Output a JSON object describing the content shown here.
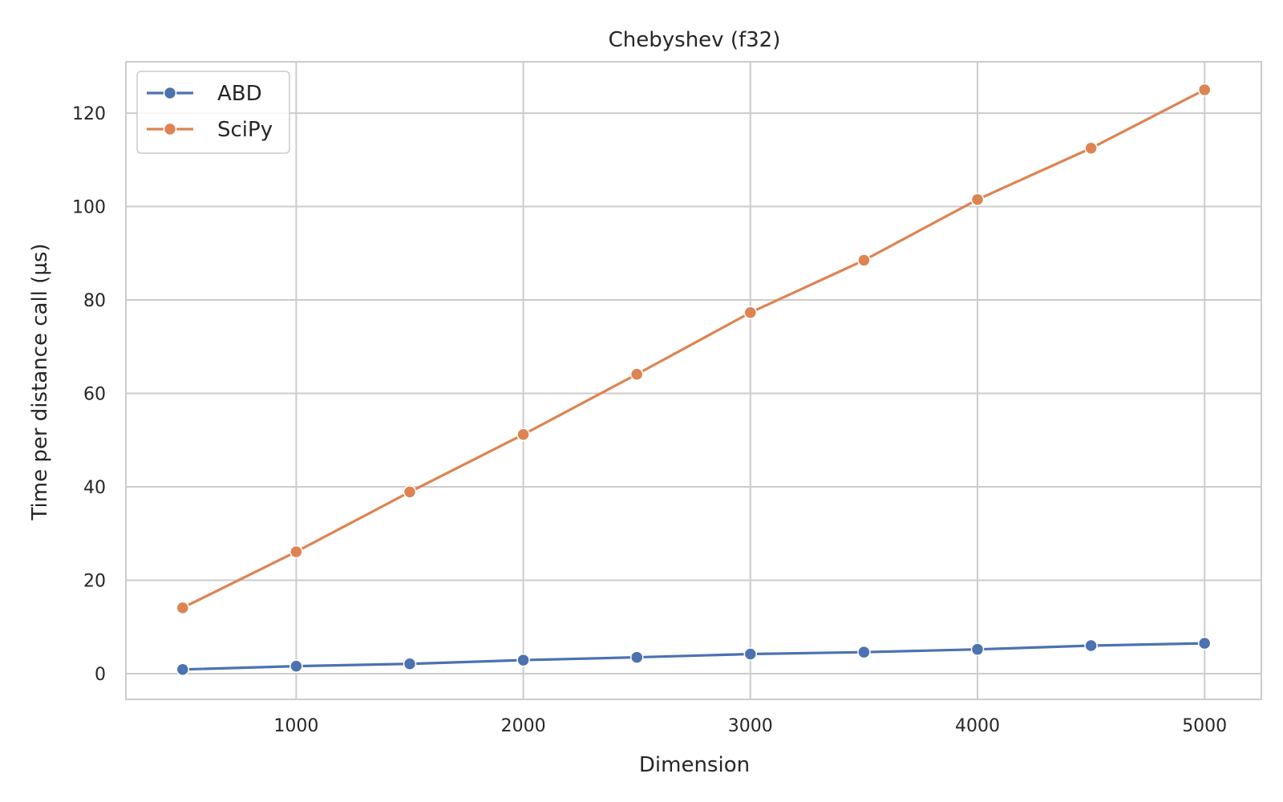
{
  "chart_data": {
    "type": "line",
    "title": "Chebyshev (f32)",
    "xlabel": "Dimension",
    "ylabel": "Time per distance call (µs)",
    "x": [
      500,
      1000,
      1500,
      2000,
      2500,
      3000,
      3500,
      4000,
      4500,
      5000
    ],
    "xlim": [
      250,
      5250
    ],
    "ylim": [
      -5.5,
      131
    ],
    "xticks": [
      1000,
      2000,
      3000,
      4000,
      5000
    ],
    "yticks": [
      0,
      20,
      40,
      60,
      80,
      100,
      120
    ],
    "grid": true,
    "legend_position": "top-left",
    "series": [
      {
        "name": "ABD",
        "color": "#4c72b0",
        "values": [
          0.9,
          1.6,
          2.1,
          2.9,
          3.5,
          4.2,
          4.6,
          5.2,
          6.0,
          6.5
        ]
      },
      {
        "name": "SciPy",
        "color": "#dd8452",
        "values": [
          14.1,
          26.1,
          38.9,
          51.2,
          64.1,
          77.3,
          88.5,
          101.5,
          112.5,
          125.0
        ]
      }
    ]
  }
}
